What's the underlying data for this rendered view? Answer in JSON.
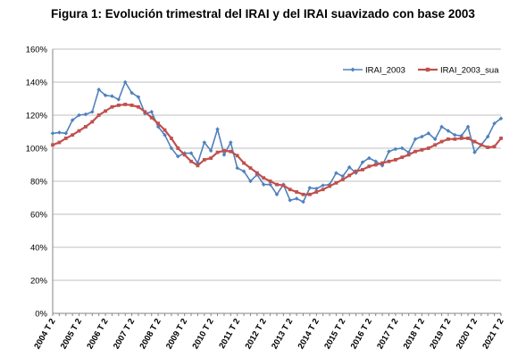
{
  "chart_data": {
    "type": "line",
    "title": "Figura 1: Evolución trimestral del IRAI y del IRAI suavizado con base 2003",
    "xlabel": "",
    "ylabel": "",
    "ylim": [
      0,
      160
    ],
    "yticks": [
      "0%",
      "20%",
      "40%",
      "60%",
      "80%",
      "100%",
      "120%",
      "140%",
      "160%"
    ],
    "ytick_values": [
      0,
      20,
      40,
      60,
      80,
      100,
      120,
      140,
      160
    ],
    "xtick_labels": [
      "2004 T 2",
      "2005 T 2",
      "2006 T 2",
      "2007 T 2",
      "2008 T 2",
      "2009 T 2",
      "2010 T 2",
      "2011 T 2",
      "2012 T 2",
      "2013 T 2",
      "2014 T 2",
      "2015 T 2",
      "2016 T 2",
      "2017 T 2",
      "2018 T 2",
      "2019 T 2",
      "2020 T 2",
      "2021 T 2"
    ],
    "grid": "horizontal",
    "legend_position": "top-right",
    "series": [
      {
        "name": "IRAI_2003",
        "color": "#4F81BD",
        "marker": "diamond",
        "values": [
          109,
          109.5,
          109,
          117,
          120,
          120.5,
          122,
          135.5,
          132,
          131.5,
          129.5,
          140,
          133.5,
          131,
          121,
          122,
          113,
          108,
          100,
          95,
          97,
          97,
          91,
          103.5,
          98.5,
          111.5,
          96,
          103.5,
          88,
          86,
          80,
          84,
          78,
          78,
          72,
          78,
          68.5,
          69.5,
          67.5,
          76,
          75.5,
          77.5,
          78,
          85,
          83,
          88.5,
          85,
          91.5,
          94,
          92,
          89.5,
          98,
          99.5,
          100,
          97.5,
          105.5,
          107,
          109,
          105.5,
          113,
          110.5,
          108,
          107.5,
          113,
          97.5,
          102,
          107,
          115,
          118
        ]
      },
      {
        "name": "IRAI_2003_sua",
        "color": "#C0504D",
        "marker": "square",
        "values": [
          102,
          103.5,
          106,
          108,
          110.5,
          113,
          116,
          120,
          122.5,
          125,
          126,
          126.5,
          126,
          125,
          122,
          118.5,
          115,
          111,
          106,
          100,
          96,
          92,
          89.5,
          93,
          94,
          97.5,
          98.5,
          98,
          95.5,
          91,
          88,
          85,
          82,
          80,
          78,
          77.5,
          75,
          73.5,
          72,
          72,
          73.5,
          75,
          77,
          79,
          81,
          83.5,
          86,
          87,
          89,
          90,
          91,
          92,
          93,
          94.5,
          96,
          98,
          99,
          100,
          102,
          104,
          105.5,
          105.5,
          106,
          106,
          104,
          102,
          100.5,
          101,
          106
        ]
      }
    ]
  }
}
